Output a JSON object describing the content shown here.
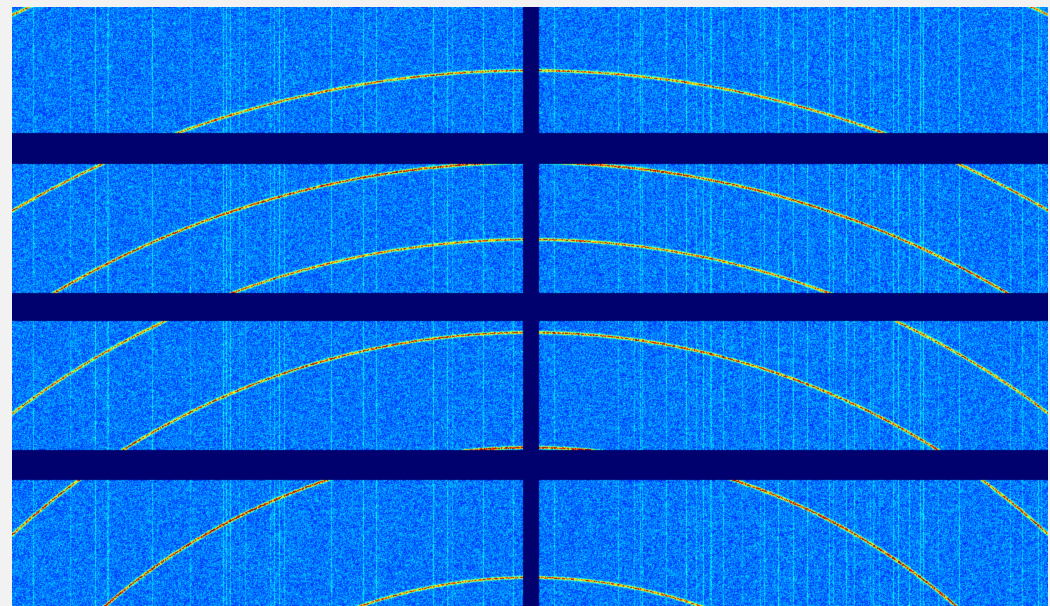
{
  "image": {
    "subject": "x-ray-powder-diffraction-detector-frame",
    "colormap": "jet",
    "colors": {
      "frame_background": "#f2f2f2",
      "panel_gap": "#00005a",
      "background_low": "#0a14b4",
      "background_high": "#1e5aff",
      "ring_peak": "#ffff40"
    },
    "detector": {
      "module_rows": 4,
      "module_columns": 2,
      "rings_visible": 6
    }
  }
}
